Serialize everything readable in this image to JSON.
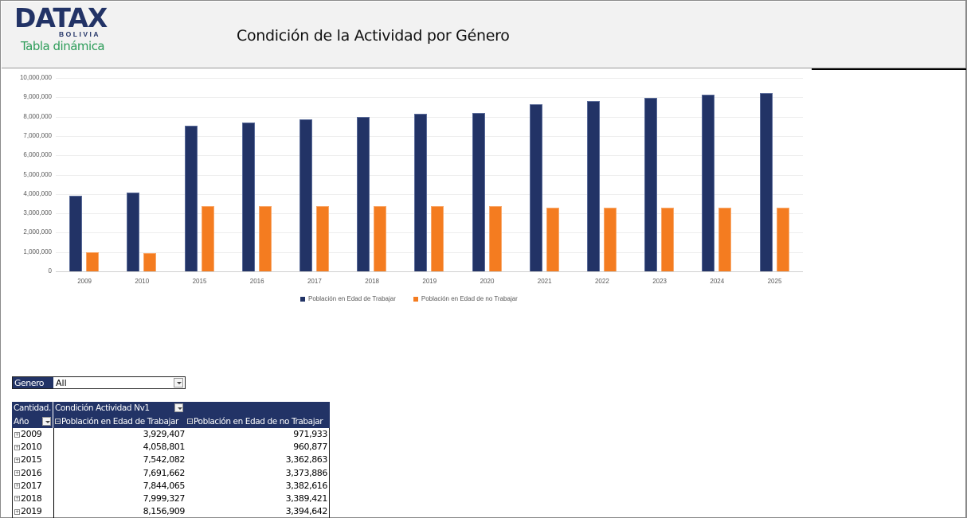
{
  "header": {
    "logo_main": "DATAX",
    "logo_sub": "BOLIVIA",
    "pivot_label": "Tabla dinámica",
    "title": "Condición de la Actividad por Género"
  },
  "colors": {
    "brand_navy": "#223366",
    "series_1": "#223366",
    "series_2": "#f47c20",
    "pivot_label_green": "#2e9d5a",
    "header_bg": "#f2f2f2"
  },
  "chart_data": {
    "type": "bar",
    "title": "",
    "xlabel": "",
    "ylabel": "",
    "ylim": [
      0,
      10000000
    ],
    "y_ticks": [
      "0",
      "1,000,000",
      "2,000,000",
      "3,000,000",
      "4,000,000",
      "5,000,000",
      "6,000,000",
      "7,000,000",
      "8,000,000",
      "9,000,000",
      "10,000,000"
    ],
    "grid": true,
    "legend_position": "bottom",
    "categories": [
      "2009",
      "2010",
      "2015",
      "2016",
      "2017",
      "2018",
      "2019",
      "2020",
      "2021",
      "2022",
      "2023",
      "2024",
      "2025"
    ],
    "series": [
      {
        "name": "Población en Edad de Trabajar",
        "color": "#223366",
        "values": [
          3929407,
          4058801,
          7542082,
          7691662,
          7844065,
          7999327,
          8156909,
          8190000,
          8640000,
          8810000,
          8970000,
          9140000,
          9220000
        ]
      },
      {
        "name": "Población en Edad de no Trabajar",
        "color": "#f47c20",
        "values": [
          971933,
          960877,
          3362863,
          3373886,
          3382616,
          3389421,
          3394642,
          3370000,
          3290000,
          3290000,
          3290000,
          3290000,
          3290000
        ]
      }
    ]
  },
  "filter": {
    "label": "Genero",
    "value": "All"
  },
  "pivot": {
    "corner_label": "Cantidad.",
    "column_field": "Condición Actividad Nv1",
    "row_field": "Año",
    "columns": [
      "Población en Edad de Trabajar",
      "Población en Edad de no Trabajar"
    ],
    "rows": [
      {
        "year": "2009",
        "v1": "3,929,407",
        "v2": "971,933"
      },
      {
        "year": "2010",
        "v1": "4,058,801",
        "v2": "960,877"
      },
      {
        "year": "2015",
        "v1": "7,542,082",
        "v2": "3,362,863"
      },
      {
        "year": "2016",
        "v1": "7,691,662",
        "v2": "3,373,886"
      },
      {
        "year": "2017",
        "v1": "7,844,065",
        "v2": "3,382,616"
      },
      {
        "year": "2018",
        "v1": "7,999,327",
        "v2": "3,389,421"
      },
      {
        "year": "2019",
        "v1": "8,156,909",
        "v2": "3,394,642"
      }
    ],
    "expander_icon": "+"
  }
}
